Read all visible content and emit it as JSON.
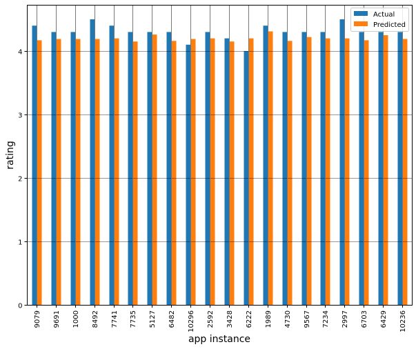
{
  "chart_data": {
    "type": "bar",
    "title": "",
    "xlabel": "app instance",
    "ylabel": "rating",
    "ylim": [
      0,
      4.75
    ],
    "yticks": [
      0,
      1,
      2,
      3,
      4
    ],
    "grid": true,
    "legend_position": "upper right",
    "categories": [
      "9079",
      "9691",
      "1000",
      "8492",
      "7741",
      "7735",
      "5127",
      "6482",
      "10296",
      "2592",
      "3428",
      "6222",
      "1989",
      "4730",
      "9567",
      "7234",
      "2997",
      "6703",
      "6429",
      "10236"
    ],
    "series": [
      {
        "name": "Actual",
        "color": "#1f77b4",
        "values": [
          4.4,
          4.3,
          4.3,
          4.5,
          4.4,
          4.3,
          4.3,
          4.3,
          4.1,
          4.3,
          4.2,
          4.0,
          4.4,
          4.3,
          4.3,
          4.3,
          4.5,
          4.3,
          4.3,
          4.3
        ]
      },
      {
        "name": "Predicted",
        "color": "#ff7f0e",
        "values": [
          4.17,
          4.19,
          4.19,
          4.19,
          4.2,
          4.15,
          4.26,
          4.16,
          4.19,
          4.2,
          4.15,
          4.2,
          4.31,
          4.16,
          4.22,
          4.2,
          4.2,
          4.17,
          4.25,
          4.19
        ]
      }
    ]
  }
}
